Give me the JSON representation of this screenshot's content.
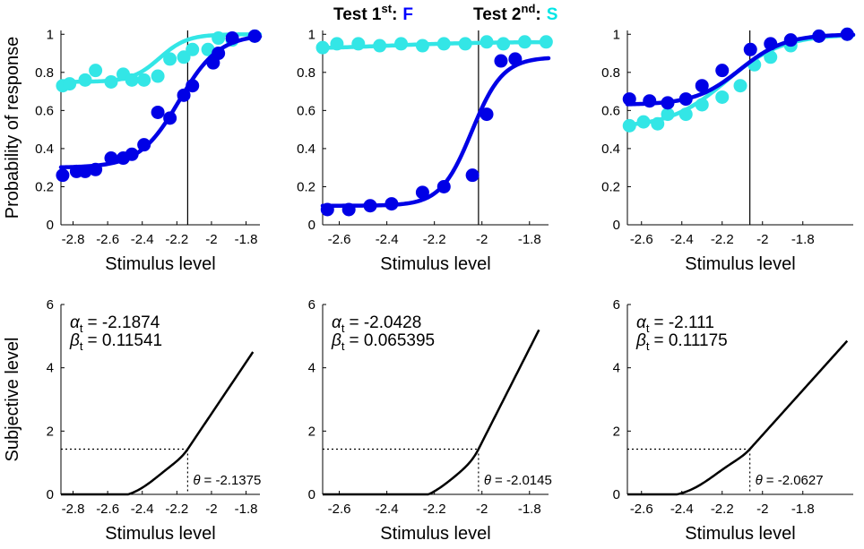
{
  "figure": {
    "legend": {
      "first_label": "Test 1",
      "first_sup": "st",
      "first_sep": ":",
      "first_letter": "F",
      "first_color": "#0000ff",
      "second_label": "Test 2",
      "second_sup": "nd",
      "second_sep": ":",
      "second_letter": "S",
      "second_color": "#00ffff"
    }
  },
  "chart_data": [
    {
      "type": "scatter",
      "title": "",
      "xlabel": "Stimulus level",
      "ylabel": "Probability of response",
      "xlim": [
        -2.87,
        -1.72
      ],
      "ylim": [
        0,
        1.02
      ],
      "xticks": [
        -2.8,
        -2.6,
        -2.4,
        -2.2,
        -2,
        -1.8
      ],
      "xtick_labels": [
        "-2.8",
        "-2.6",
        "-2.4",
        "-2.2",
        "-2",
        "-1.8"
      ],
      "yticks": [
        0,
        0.2,
        0.4,
        0.6,
        0.8,
        1
      ],
      "ytick_labels": [
        "0",
        "0.2",
        "0.4",
        "0.6",
        "0.8",
        "1"
      ],
      "threshold_line": -2.1375,
      "series": [
        {
          "name": "Test 1st: F",
          "color": "#0000e6",
          "x": [
            -2.86,
            -2.78,
            -2.73,
            -2.67,
            -2.58,
            -2.51,
            -2.46,
            -2.39,
            -2.31,
            -2.24,
            -2.16,
            -2.11,
            -1.99,
            -1.96,
            -1.88,
            -1.75
          ],
          "y": [
            0.26,
            0.28,
            0.28,
            0.29,
            0.35,
            0.35,
            0.37,
            0.42,
            0.59,
            0.56,
            0.68,
            0.73,
            0.85,
            0.9,
            0.98,
            0.99
          ],
          "fit": {
            "alpha": -2.1874,
            "beta": 0.11541,
            "guess": 0.3,
            "lapse": 0.0
          }
        },
        {
          "name": "Test 2nd: S",
          "color": "#33e6e6",
          "x": [
            -2.86,
            -2.82,
            -2.73,
            -2.67,
            -2.58,
            -2.51,
            -2.46,
            -2.39,
            -2.31,
            -2.24,
            -2.16,
            -2.11,
            -2.02,
            -1.96,
            -1.88,
            -1.75
          ],
          "y": [
            0.73,
            0.74,
            0.76,
            0.81,
            0.75,
            0.79,
            0.76,
            0.76,
            0.78,
            0.87,
            0.88,
            0.92,
            0.92,
            0.98,
            0.97,
            0.99
          ],
          "fit": {
            "alpha": -2.3,
            "beta": 0.08,
            "guess": 0.75,
            "lapse": 0.0
          }
        }
      ]
    },
    {
      "type": "scatter",
      "title": "",
      "xlabel": "Stimulus level",
      "ylabel": "",
      "xlim": [
        -2.67,
        -1.72
      ],
      "ylim": [
        0,
        1.02
      ],
      "xticks": [
        -2.6,
        -2.4,
        -2.2,
        -2,
        -1.8
      ],
      "xtick_labels": [
        "-2.6",
        "-2.4",
        "-2.2",
        "-2",
        "-1.8"
      ],
      "yticks": [
        0,
        0.2,
        0.4,
        0.6,
        0.8,
        1
      ],
      "ytick_labels": [
        "0",
        "0.2",
        "0.4",
        "0.6",
        "0.8",
        "1"
      ],
      "threshold_line": -2.0145,
      "series": [
        {
          "name": "Test 1st: F",
          "color": "#0000e6",
          "x": [
            -2.65,
            -2.56,
            -2.47,
            -2.38,
            -2.25,
            -2.16,
            -2.04,
            -1.98,
            -1.92,
            -1.86
          ],
          "y": [
            0.08,
            0.08,
            0.1,
            0.11,
            0.17,
            0.2,
            0.26,
            0.58,
            0.86,
            0.87
          ],
          "fit": {
            "alpha": -2.0428,
            "beta": 0.065395,
            "guess": 0.1,
            "lapse": 0.12
          }
        },
        {
          "name": "Test 2nd: S",
          "color": "#33e6e6",
          "x": [
            -2.67,
            -2.61,
            -2.52,
            -2.43,
            -2.34,
            -2.25,
            -2.16,
            -2.07,
            -1.98,
            -1.91,
            -1.82,
            -1.73
          ],
          "y": [
            0.93,
            0.95,
            0.95,
            0.94,
            0.95,
            0.94,
            0.95,
            0.95,
            0.96,
            0.95,
            0.96,
            0.96
          ],
          "fit": {
            "alpha": -2.4,
            "beta": 0.2,
            "guess": 0.92,
            "lapse": 0.04
          }
        }
      ]
    },
    {
      "type": "scatter",
      "title": "",
      "xlabel": "Stimulus level",
      "ylabel": "",
      "xlim": [
        -2.67,
        -1.55
      ],
      "ylim": [
        0,
        1.02
      ],
      "xticks": [
        -2.6,
        -2.4,
        -2.2,
        -2,
        -1.8
      ],
      "xtick_labels": [
        "-2.6",
        "-2.4",
        "-2.2",
        "-2",
        "-1.8"
      ],
      "yticks": [
        0,
        0.2,
        0.4,
        0.6,
        0.8,
        1
      ],
      "ytick_labels": [
        "0",
        "0.2",
        "0.4",
        "0.6",
        "0.8",
        "1"
      ],
      "threshold_line": -2.0627,
      "series": [
        {
          "name": "Test 1st: F",
          "color": "#0000e6",
          "x": [
            -2.66,
            -2.56,
            -2.47,
            -2.38,
            -2.3,
            -2.2,
            -2.06,
            -1.96,
            -1.86,
            -1.72,
            -1.58
          ],
          "y": [
            0.66,
            0.65,
            0.64,
            0.66,
            0.73,
            0.81,
            0.92,
            0.95,
            0.97,
            0.99,
            1.0
          ],
          "fit": {
            "alpha": -2.111,
            "beta": 0.11175,
            "guess": 0.63,
            "lapse": 0.0
          }
        },
        {
          "name": "Test 2nd: S",
          "color": "#33e6e6",
          "x": [
            -2.66,
            -2.59,
            -2.52,
            -2.47,
            -2.38,
            -2.3,
            -2.2,
            -2.11,
            -2.04,
            -1.96,
            -1.86,
            -1.72,
            -1.58
          ],
          "y": [
            0.52,
            0.54,
            0.53,
            0.58,
            0.58,
            0.63,
            0.67,
            0.73,
            0.84,
            0.88,
            0.94,
            0.99,
            1.0
          ],
          "fit": {
            "alpha": -2.18,
            "beta": 0.14,
            "guess": 0.51,
            "lapse": 0.0
          }
        }
      ]
    },
    {
      "type": "line",
      "title": "",
      "xlabel": "Stimulus level",
      "ylabel": "Subjective level",
      "xlim": [
        -2.87,
        -1.72
      ],
      "ylim": [
        0,
        6
      ],
      "xticks": [
        -2.8,
        -2.6,
        -2.4,
        -2.2,
        -2,
        -1.8
      ],
      "xtick_labels": [
        "-2.8",
        "-2.6",
        "-2.4",
        "-2.2",
        "-2",
        "-1.8"
      ],
      "yticks": [
        0,
        2,
        4,
        6
      ],
      "ytick_labels": [
        "0",
        "2",
        "4",
        "6"
      ],
      "alpha_label": "α",
      "alpha_sub": "t",
      "alpha_text": "= -2.1874",
      "beta_label": "β",
      "beta_sub": "t",
      "beta_text": "= 0.11541",
      "theta_label": "θ",
      "theta_text": "= -2.1375",
      "theta": -2.1375,
      "theta_y": 1.43,
      "curve": {
        "x_start": -2.87,
        "x_end": -1.76,
        "y_end": 4.5,
        "y_theta": 1.43,
        "theta": -2.1375,
        "sigma": 0.23
      }
    },
    {
      "type": "line",
      "title": "",
      "xlabel": "Stimulus level",
      "ylabel": "",
      "xlim": [
        -2.67,
        -1.72
      ],
      "ylim": [
        0,
        6
      ],
      "xticks": [
        -2.6,
        -2.4,
        -2.2,
        -2,
        -1.8
      ],
      "xtick_labels": [
        "-2.6",
        "-2.4",
        "-2.2",
        "-2",
        "-1.8"
      ],
      "yticks": [
        0,
        2,
        4,
        6
      ],
      "ytick_labels": [
        "0",
        "2",
        "4",
        "6"
      ],
      "alpha_label": "α",
      "alpha_sub": "t",
      "alpha_text": "= -2.0428",
      "beta_label": "β",
      "beta_sub": "t",
      "beta_text": "= 0.065395",
      "theta_label": "θ",
      "theta_text": "= -2.0145",
      "theta": -2.0145,
      "theta_y": 1.43,
      "curve": {
        "x_start": -2.67,
        "x_end": -1.76,
        "y_end": 5.2,
        "y_theta": 1.43,
        "theta": -2.0145,
        "sigma": 0.17
      }
    },
    {
      "type": "line",
      "title": "",
      "xlabel": "Stimulus level",
      "ylabel": "",
      "xlim": [
        -2.67,
        -1.55
      ],
      "ylim": [
        0,
        6
      ],
      "xticks": [
        -2.6,
        -2.4,
        -2.2,
        -2,
        -1.8
      ],
      "xtick_labels": [
        "-2.6",
        "-2.4",
        "-2.2",
        "-2",
        "-1.8"
      ],
      "yticks": [
        0,
        2,
        4,
        6
      ],
      "ytick_labels": [
        "0",
        "2",
        "4",
        "6"
      ],
      "alpha_label": "α",
      "alpha_sub": "t",
      "alpha_text": "= -2.111",
      "beta_label": "β",
      "beta_sub": "t",
      "beta_text": "= 0.11175",
      "theta_label": "θ",
      "theta_text": "= -2.0627",
      "theta": -2.0627,
      "theta_y": 1.43,
      "curve": {
        "x_start": -2.67,
        "x_end": -1.58,
        "y_end": 4.85,
        "y_theta": 1.43,
        "theta": -2.0627,
        "sigma": 0.22
      }
    }
  ]
}
